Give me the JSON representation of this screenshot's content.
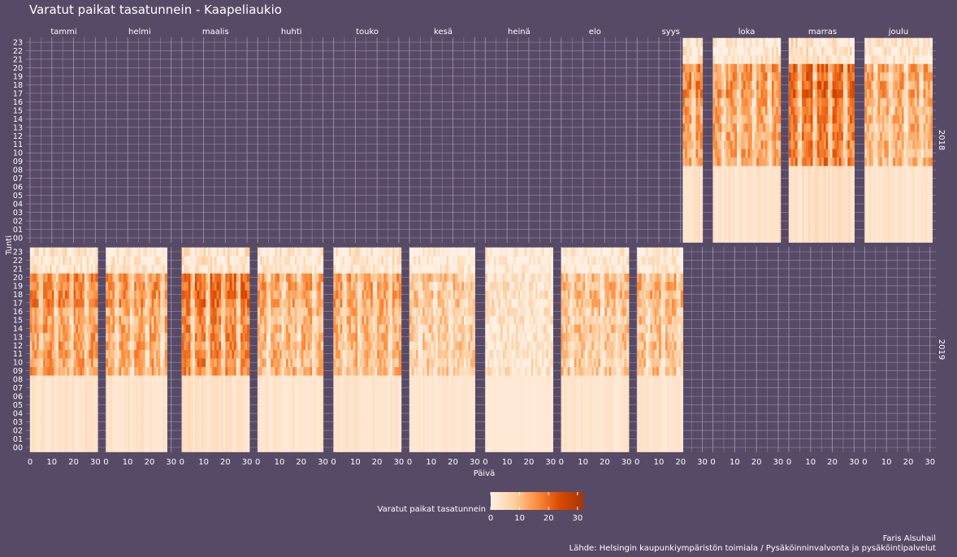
{
  "chart_data": {
    "type": "heatmap",
    "title": "Varatut paikat tasatunnein - Kaapeliaukio",
    "xlabel": "Päivä",
    "ylabel": "Tunti",
    "months": [
      "tammi",
      "helmi",
      "maalis",
      "huhti",
      "touko",
      "kesä",
      "heinä",
      "elo",
      "syys",
      "loka",
      "marras",
      "joulu"
    ],
    "years": [
      "2018",
      "2019"
    ],
    "x_ticks": [
      "0",
      "10",
      "20",
      "30"
    ],
    "xlim": [
      0,
      31
    ],
    "hours": [
      "00",
      "01",
      "02",
      "03",
      "04",
      "05",
      "06",
      "07",
      "08",
      "09",
      "10",
      "11",
      "12",
      "13",
      "14",
      "15",
      "16",
      "17",
      "18",
      "19",
      "20",
      "21",
      "22",
      "23"
    ],
    "legend": {
      "title": "Varatut paikat tasatunnein",
      "ticks": [
        "0",
        "10",
        "20",
        "30"
      ],
      "min": 0,
      "max": 32,
      "colors": [
        "#fff0e4",
        "#fdd0a2",
        "#fd8d3c",
        "#d94801",
        "#a63603"
      ]
    },
    "panels": [
      {
        "year": "2018",
        "month": "syys",
        "days": [
          22,
          30
        ],
        "intensity": 0.55
      },
      {
        "year": "2018",
        "month": "loka",
        "days": [
          1,
          31
        ],
        "intensity": 0.5
      },
      {
        "year": "2018",
        "month": "marras",
        "days": [
          1,
          30
        ],
        "intensity": 0.7
      },
      {
        "year": "2018",
        "month": "joulu",
        "days": [
          1,
          31
        ],
        "intensity": 0.45
      },
      {
        "year": "2019",
        "month": "tammi",
        "days": [
          1,
          31
        ],
        "intensity": 0.55
      },
      {
        "year": "2019",
        "month": "helmi",
        "days": [
          1,
          28
        ],
        "intensity": 0.5
      },
      {
        "year": "2019",
        "month": "maalis",
        "days": [
          1,
          31
        ],
        "intensity": 0.65
      },
      {
        "year": "2019",
        "month": "huhti",
        "days": [
          1,
          30
        ],
        "intensity": 0.45
      },
      {
        "year": "2019",
        "month": "touko",
        "days": [
          1,
          31
        ],
        "intensity": 0.45
      },
      {
        "year": "2019",
        "month": "kesä",
        "days": [
          1,
          30
        ],
        "intensity": 0.3
      },
      {
        "year": "2019",
        "month": "heinä",
        "days": [
          1,
          31
        ],
        "intensity": 0.12
      },
      {
        "year": "2019",
        "month": "elo",
        "days": [
          1,
          31
        ],
        "intensity": 0.35
      },
      {
        "year": "2019",
        "month": "syys",
        "days": [
          1,
          21
        ],
        "intensity": 0.4
      }
    ],
    "grid": true,
    "legend_position": "bottom"
  },
  "caption": {
    "author": "Faris Alsuhail",
    "source": "Lähde: Helsingin kaupunkiympäristön toimiala / Pysäköinninvalvonta ja pysäköintipalvelut"
  },
  "colors": {
    "background": "#574a66",
    "grid": "#9a8fab",
    "missing": "#574a66"
  }
}
